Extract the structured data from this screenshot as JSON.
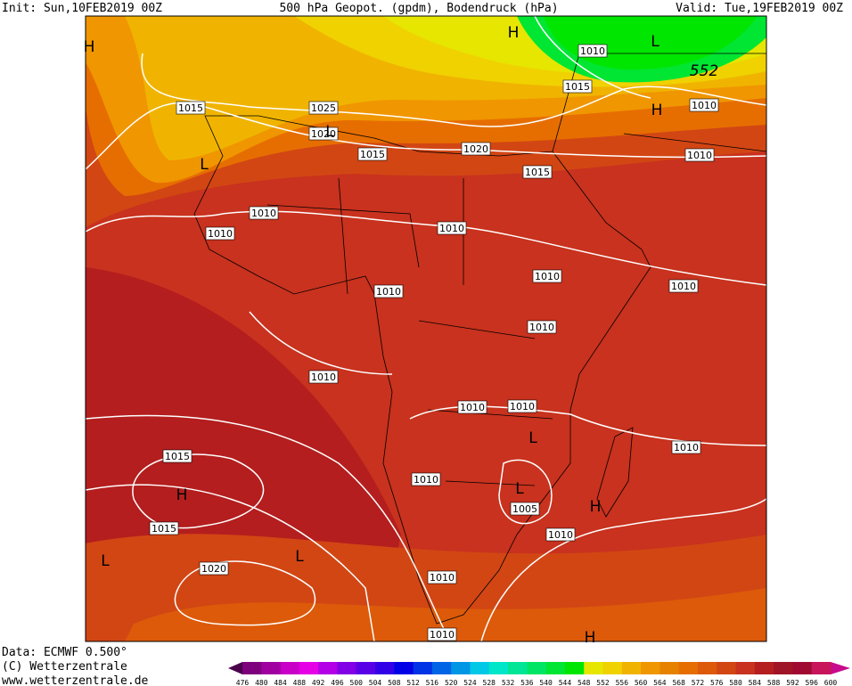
{
  "header": {
    "init": "Init: Sun,10FEB2019 00Z",
    "title": "500 hPa Geopot. (gpdm), Bodendruck (hPa)",
    "valid": "Valid: Tue,19FEB2019 00Z"
  },
  "isobar_labels": [
    "1015",
    "1025",
    "1020",
    "1015",
    "1020",
    "1015",
    "1010",
    "1015",
    "1010",
    "1010",
    "1010",
    "1010",
    "1010",
    "1010",
    "1010",
    "1010",
    "1010",
    "1010",
    "1010",
    "1010",
    "1010",
    "1015",
    "1010",
    "1005",
    "1015",
    "1010",
    "1020",
    "1010",
    "1010"
  ],
  "contour_label": "552",
  "pressure_centers": [
    "H",
    "H",
    "L",
    "H",
    "L",
    "L",
    "L",
    "H",
    "L",
    "H",
    "L",
    "L",
    "H"
  ],
  "footer": {
    "data": "Data: ECMWF  0.500°",
    "copyright": "(C) Wetterzentrale",
    "url": "www.wetterzentrale.de"
  },
  "colorbar": {
    "ticks": [
      476,
      480,
      484,
      488,
      492,
      496,
      500,
      504,
      508,
      512,
      516,
      520,
      524,
      528,
      532,
      536,
      540,
      544,
      548,
      552,
      556,
      560,
      564,
      568,
      572,
      576,
      580,
      584,
      588,
      592,
      596,
      600
    ],
    "colors": [
      "#7d007d",
      "#a000a0",
      "#c800c8",
      "#e600e6",
      "#b400e6",
      "#8200e6",
      "#5a00e6",
      "#3200e6",
      "#0000e6",
      "#0032e6",
      "#0064e6",
      "#0096e6",
      "#00c8e6",
      "#00e6c8",
      "#00e696",
      "#00e664",
      "#00e632",
      "#00e600",
      "#e6e600",
      "#f0d200",
      "#f0b400",
      "#f09600",
      "#e68200",
      "#e66e00",
      "#dc5a0a",
      "#d24614",
      "#c8321e",
      "#b41e1e",
      "#a01428",
      "#a00a32",
      "#c8145a"
    ],
    "low_color": "#4b004b",
    "high_color": "#c80a8c"
  }
}
